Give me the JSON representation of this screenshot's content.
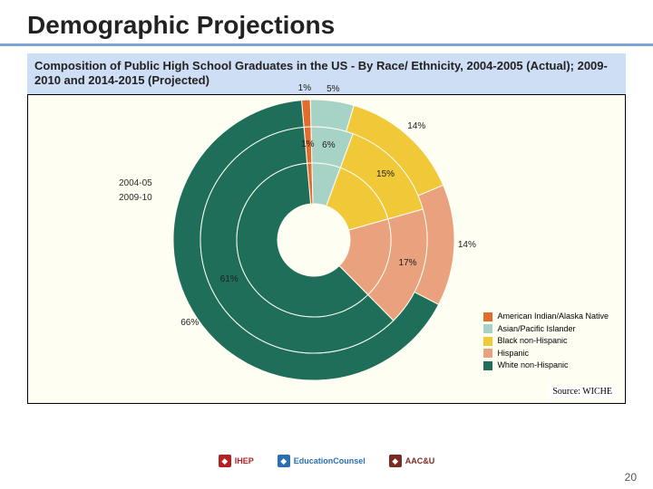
{
  "title": "Demographic Projections",
  "subtitle": "Composition of Public High School Graduates in the US - By Race/ Ethnicity, 2004-2005 (Actual); 2009-2010 and 2014-2015 (Projected)",
  "chart": {
    "type": "nested-donut",
    "background_color": "#fffef2",
    "rings": [
      {
        "year": "2014-15",
        "radius": 155,
        "inner_radius": 125,
        "values": [
          1,
          5,
          14,
          14,
          66
        ],
        "labels": [
          "1%",
          "5%",
          "14%",
          "14%",
          "66%"
        ]
      },
      {
        "year": "2009-10",
        "radius": 125,
        "inner_radius": 85,
        "values": [
          1,
          6,
          15,
          17,
          61
        ],
        "labels": [
          "1%",
          "6%",
          "15%",
          "17%",
          "61%"
        ]
      },
      {
        "year": "2004-05",
        "radius": 85,
        "inner_radius": 40,
        "values": [
          1,
          6,
          15,
          17,
          61
        ],
        "labels": [
          "",
          "",
          "",
          "",
          ""
        ]
      }
    ],
    "categories": [
      {
        "name": "American Indian/Alaska Native",
        "color": "#e36b2c"
      },
      {
        "name": "Asian/Pacific Islander",
        "color": "#a7d3c6"
      },
      {
        "name": "Black non-Hispanic",
        "color": "#f0c838"
      },
      {
        "name": "Hispanic",
        "color": "#e9a17e"
      },
      {
        "name": "White non-Hispanic",
        "color": "#1e6e5a"
      }
    ],
    "label_fontsize": 10,
    "legend_fontsize": 9,
    "start_angle_deg": -5
  },
  "ring_labels": {
    "inner": "2004-05",
    "middle": "2009-10"
  },
  "source": "Source: WICHE",
  "logos": [
    {
      "name": "IHEP",
      "color": "#b22222"
    },
    {
      "name": "EducationCounsel",
      "color": "#2a6fb0"
    },
    {
      "name": "AAC&U",
      "color": "#7a2b22"
    }
  ],
  "page_number": "20"
}
